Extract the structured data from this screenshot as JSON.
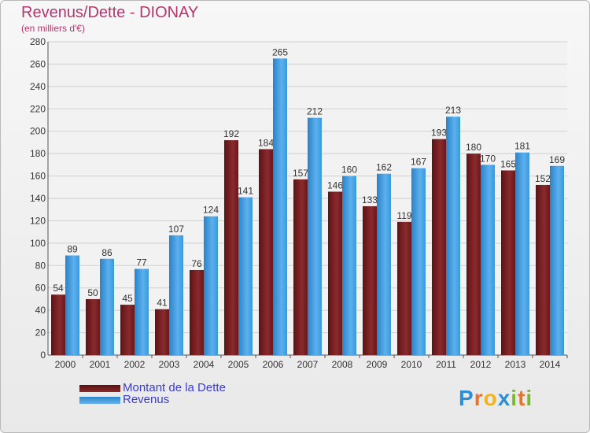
{
  "chart_data": {
    "type": "bar",
    "title": "Revenus/Dette - DIONAY",
    "subtitle": "(en milliers d'€)",
    "categories": [
      "2000",
      "2001",
      "2002",
      "2003",
      "2004",
      "2005",
      "2006",
      "2007",
      "2008",
      "2009",
      "2010",
      "2011",
      "2012",
      "2013",
      "2014"
    ],
    "series": [
      {
        "name": "Montant de la Dette",
        "values": [
          54,
          50,
          45,
          41,
          76,
          192,
          184,
          157,
          146,
          133,
          119,
          193,
          180,
          165,
          152
        ],
        "color": "#7a1f22"
      },
      {
        "name": "Revenus",
        "values": [
          89,
          86,
          77,
          107,
          124,
          141,
          265,
          212,
          160,
          162,
          167,
          213,
          170,
          181,
          169
        ],
        "color": "#3d9ade"
      }
    ],
    "ylim": [
      0,
      280
    ],
    "yticks": [
      0,
      20,
      40,
      60,
      80,
      100,
      120,
      140,
      160,
      180,
      200,
      220,
      240,
      260,
      280
    ],
    "grid": true,
    "legend_position": "bottom-left"
  },
  "logo": {
    "text": "Proxiti",
    "letters": [
      {
        "ch": "P",
        "color": "#2a8fd6"
      },
      {
        "ch": "r",
        "color": "#e8722a"
      },
      {
        "ch": "o",
        "color": "#f2b320"
      },
      {
        "ch": "x",
        "color": "#2a8fd6"
      },
      {
        "ch": "i",
        "color": "#7ab82e"
      },
      {
        "ch": "t",
        "color": "#e8722a"
      },
      {
        "ch": "i",
        "color": "#7ab82e"
      }
    ]
  }
}
